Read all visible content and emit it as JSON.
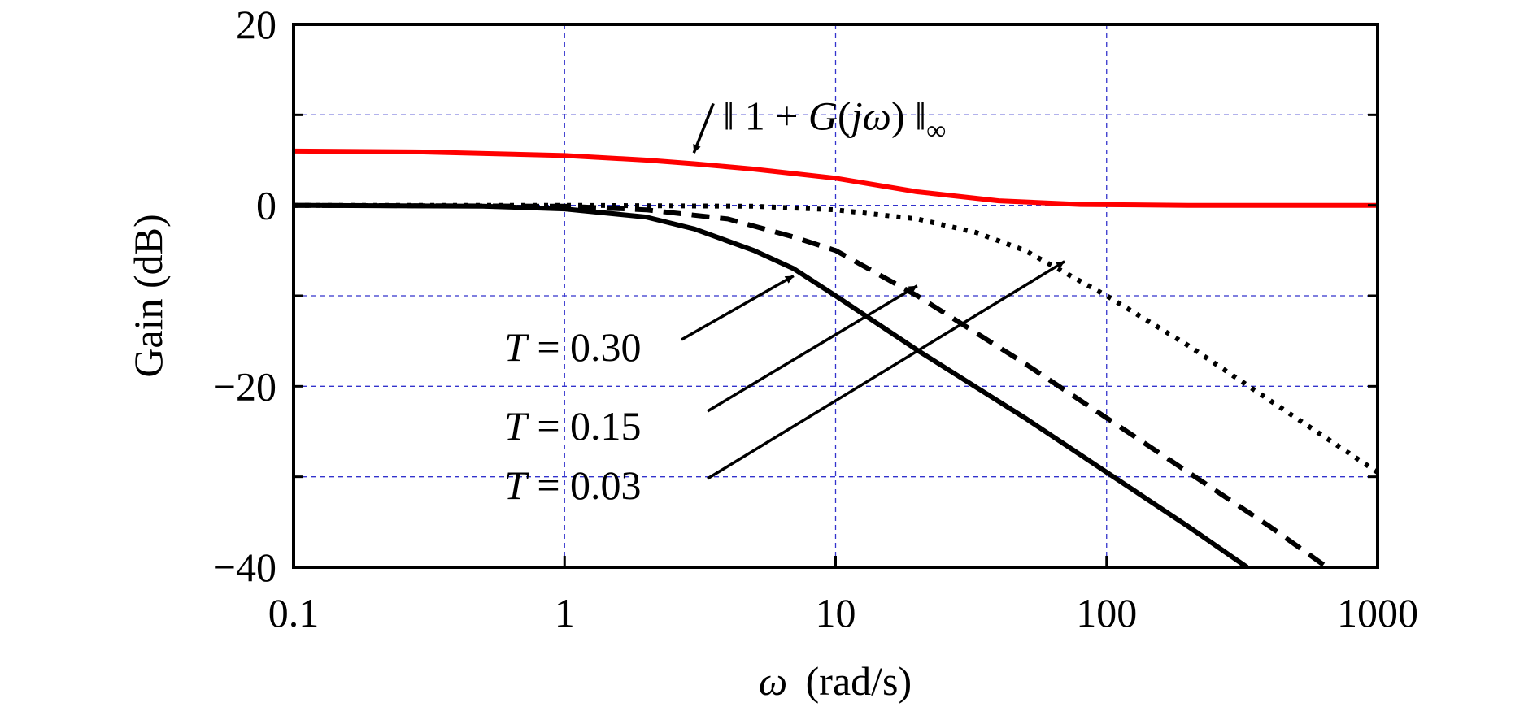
{
  "chart_data": {
    "type": "line",
    "title": "",
    "xlabel": {
      "symbol": "ω",
      "unit": "(rad/s)"
    },
    "ylabel": "Gain (dB)",
    "xscale": "log",
    "xlim": [
      0.1,
      1000
    ],
    "ylim": [
      -40,
      20
    ],
    "xticks": [
      "0.1",
      "1",
      "10",
      "100",
      "1000"
    ],
    "yticks": [
      "20",
      "0",
      "−20",
      "−40"
    ],
    "xtick_values": [
      0.1,
      1,
      10,
      100,
      1000
    ],
    "ytick_values": [
      20,
      0,
      -20,
      -40
    ],
    "grid": true,
    "grid_color": "#3333cc",
    "series": [
      {
        "key": "sensitivity-norm",
        "color": "#ff0000",
        "style": "solid",
        "x": [
          0.1,
          0.3,
          1,
          2,
          3,
          5,
          10,
          20,
          40,
          80,
          200,
          1000
        ],
        "y": [
          6.0,
          5.9,
          5.5,
          5.0,
          4.6,
          4.0,
          3.0,
          1.5,
          0.5,
          0.1,
          0.0,
          0.0
        ]
      },
      {
        "key": "T-0.30",
        "color": "#000000",
        "style": "solid",
        "x": [
          0.1,
          0.5,
          1,
          2,
          3,
          5,
          7,
          10,
          20,
          50,
          100,
          200,
          330
        ],
        "y": [
          0.0,
          -0.1,
          -0.4,
          -1.3,
          -2.6,
          -5.0,
          -7.0,
          -10.0,
          -16.0,
          -23.5,
          -29.5,
          -35.5,
          -40.0
        ]
      },
      {
        "key": "T-0.15",
        "color": "#000000",
        "style": "dashed",
        "x": [
          0.1,
          1,
          2,
          4,
          7,
          10,
          20,
          50,
          100,
          200,
          400,
          650
        ],
        "y": [
          0.0,
          -0.1,
          -0.5,
          -1.5,
          -3.5,
          -5.0,
          -10.0,
          -17.5,
          -23.5,
          -29.5,
          -35.5,
          -40.0
        ]
      },
      {
        "key": "T-0.03",
        "color": "#000000",
        "style": "dotted",
        "x": [
          0.1,
          1,
          5,
          10,
          20,
          33,
          50,
          100,
          200,
          500,
          1000
        ],
        "y": [
          0.0,
          0.0,
          -0.1,
          -0.5,
          -1.5,
          -3.0,
          -5.0,
          -10.0,
          -15.5,
          -23.5,
          -29.5
        ]
      }
    ],
    "annotations": [
      {
        "key": "norm-label",
        "text_prefix": "‖ 1 + ",
        "text_func": "G",
        "text_paren_open": "(",
        "text_var": "jω",
        "text_paren_close": ") ‖",
        "text_sub": "∞",
        "target": [
          3.0,
          5.8
        ],
        "text_at": [
          5.0,
          10.0
        ]
      },
      {
        "key": "T-0.30-label",
        "var": "T",
        "value": " = 0.30",
        "target": [
          7.0,
          -7.8
        ],
        "text_at": [
          0.1,
          -16.2
        ]
      },
      {
        "key": "T-0.15-label",
        "var": "T",
        "value": " = 0.15",
        "target": [
          20.0,
          -8.9
        ],
        "text_at": [
          0.1,
          -25.5
        ]
      },
      {
        "key": "T-0.03-label",
        "var": "T",
        "value": " = 0.03",
        "target": [
          70.0,
          -6.2
        ],
        "text_at": [
          0.1,
          -31.5
        ]
      }
    ]
  }
}
